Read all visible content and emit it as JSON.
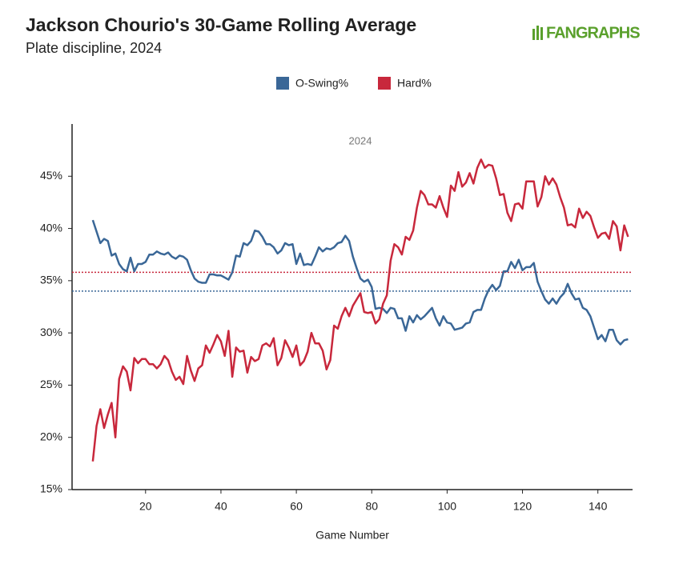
{
  "chart_data": {
    "type": "line",
    "title": "Jackson Chourio's 30-Game Rolling Average",
    "subtitle": "Plate discipline, 2024",
    "logo": "FANGRAPHS",
    "annotation": "2024",
    "x_label": "Game Number",
    "x": [
      6,
      7,
      8,
      9,
      10,
      11,
      12,
      13,
      14,
      15,
      16,
      17,
      18,
      19,
      20,
      21,
      22,
      23,
      24,
      25,
      26,
      27,
      28,
      29,
      30,
      31,
      32,
      33,
      34,
      35,
      36,
      37,
      38,
      39,
      40,
      41,
      42,
      43,
      44,
      45,
      46,
      47,
      48,
      49,
      50,
      51,
      52,
      53,
      54,
      55,
      56,
      57,
      58,
      59,
      60,
      61,
      62,
      63,
      64,
      65,
      66,
      67,
      68,
      69,
      70,
      71,
      72,
      73,
      74,
      75,
      76,
      77,
      78,
      79,
      80,
      81,
      82,
      83,
      84,
      85,
      86,
      87,
      88,
      89,
      90,
      91,
      92,
      93,
      94,
      95,
      96,
      97,
      98,
      99,
      100,
      101,
      102,
      103,
      104,
      105,
      106,
      107,
      108,
      109,
      110,
      111,
      112,
      113,
      114,
      115,
      116,
      117,
      118,
      119,
      120,
      121,
      122,
      123,
      124,
      125,
      126,
      127,
      128,
      129,
      130,
      131,
      132,
      133,
      134,
      135,
      136,
      137,
      138,
      139,
      140,
      141,
      142,
      143,
      144,
      145,
      146,
      147,
      148
    ],
    "series": [
      {
        "name": "O-Swing%",
        "color": "#3a6797",
        "values": [
          40.8,
          39.7,
          38.6,
          39.0,
          38.8,
          37.4,
          37.6,
          36.6,
          36.1,
          35.9,
          37.2,
          35.9,
          36.6,
          36.6,
          36.8,
          37.5,
          37.5,
          37.8,
          37.6,
          37.5,
          37.7,
          37.3,
          37.1,
          37.4,
          37.3,
          37.0,
          36.0,
          35.2,
          34.9,
          34.8,
          34.8,
          35.6,
          35.6,
          35.5,
          35.5,
          35.3,
          35.1,
          35.8,
          37.4,
          37.3,
          38.6,
          38.4,
          38.8,
          39.8,
          39.7,
          39.2,
          38.5,
          38.5,
          38.2,
          37.6,
          37.9,
          38.6,
          38.4,
          38.5,
          36.6,
          37.6,
          36.5,
          36.6,
          36.5,
          37.3,
          38.2,
          37.8,
          38.1,
          38.0,
          38.2,
          38.6,
          38.7,
          39.3,
          38.8,
          37.3,
          36.2,
          35.2,
          34.9,
          35.1,
          34.4,
          32.3,
          32.4,
          32.3,
          31.9,
          32.4,
          32.3,
          31.4,
          31.4,
          30.2,
          31.6,
          31.0,
          31.7,
          31.3,
          31.6,
          32.0,
          32.4,
          31.4,
          30.7,
          31.6,
          31.0,
          30.9,
          30.3,
          30.4,
          30.5,
          30.9,
          31.0,
          32.0,
          32.2,
          32.2,
          33.3,
          34.1,
          34.6,
          34.1,
          34.5,
          35.9,
          35.9,
          36.8,
          36.2,
          37.0,
          36.0,
          36.3,
          36.3,
          36.7,
          34.9,
          34.0,
          33.2,
          32.8,
          33.3,
          32.8,
          33.4,
          33.8,
          34.7,
          33.8,
          33.2,
          33.3,
          32.4,
          32.2,
          31.6,
          30.5,
          29.4,
          29.8,
          29.2,
          30.3,
          30.3,
          29.3,
          28.9,
          29.3,
          29.4
        ]
      },
      {
        "name": "Hard%",
        "color": "#c8283c",
        "values": [
          17.7,
          21.1,
          22.7,
          20.9,
          22.2,
          23.3,
          20.0,
          25.6,
          26.8,
          26.3,
          24.5,
          27.6,
          27.1,
          27.5,
          27.5,
          27.0,
          27.0,
          26.6,
          27.0,
          27.8,
          27.4,
          26.3,
          25.5,
          25.8,
          25.1,
          27.8,
          26.4,
          25.4,
          26.6,
          26.9,
          28.8,
          28.1,
          28.9,
          29.8,
          29.2,
          27.8,
          30.2,
          25.8,
          28.6,
          28.2,
          28.3,
          26.2,
          27.7,
          27.3,
          27.5,
          28.8,
          29.0,
          28.7,
          29.5,
          26.9,
          27.6,
          29.3,
          28.6,
          27.7,
          28.8,
          26.9,
          27.3,
          28.2,
          30.0,
          29.0,
          29.0,
          28.3,
          26.5,
          27.4,
          30.7,
          30.4,
          31.6,
          32.4,
          31.6,
          32.6,
          33.2,
          33.8,
          32.0,
          31.9,
          32.0,
          30.9,
          31.3,
          32.8,
          33.6,
          36.9,
          38.5,
          38.2,
          37.5,
          39.2,
          38.9,
          39.8,
          42.0,
          43.6,
          43.2,
          42.3,
          42.3,
          42.0,
          43.1,
          42.0,
          41.1,
          44.1,
          43.6,
          45.4,
          44.0,
          44.4,
          45.3,
          44.3,
          45.8,
          46.6,
          45.8,
          46.1,
          46.0,
          44.8,
          43.2,
          43.3,
          41.5,
          40.7,
          42.3,
          42.4,
          41.9,
          44.5,
          44.5,
          44.5,
          42.1,
          43.0,
          45.0,
          44.2,
          44.8,
          44.2,
          43.0,
          42.0,
          40.3,
          40.4,
          40.1,
          41.9,
          41.0,
          41.6,
          41.2,
          40.1,
          39.1,
          39.5,
          39.6,
          39.0,
          40.7,
          40.2,
          37.9,
          40.3,
          39.2
        ]
      }
    ],
    "hlines": [
      {
        "value": 35.8,
        "color": "#c8283c"
      },
      {
        "value": 34.0,
        "color": "#3a6797"
      }
    ],
    "xlim": [
      0.5,
      149.2
    ],
    "xticks": [
      20,
      40,
      60,
      80,
      100,
      120,
      140
    ],
    "ylim": [
      15,
      50
    ],
    "yticks": [
      {
        "value": 15,
        "label": "15%"
      },
      {
        "value": 20,
        "label": "20%"
      },
      {
        "value": 25,
        "label": "25%"
      },
      {
        "value": 30,
        "label": "30%"
      },
      {
        "value": 35,
        "label": "35%"
      },
      {
        "value": 40,
        "label": "40%"
      },
      {
        "value": 45,
        "label": "45%"
      }
    ],
    "legend": "top"
  }
}
